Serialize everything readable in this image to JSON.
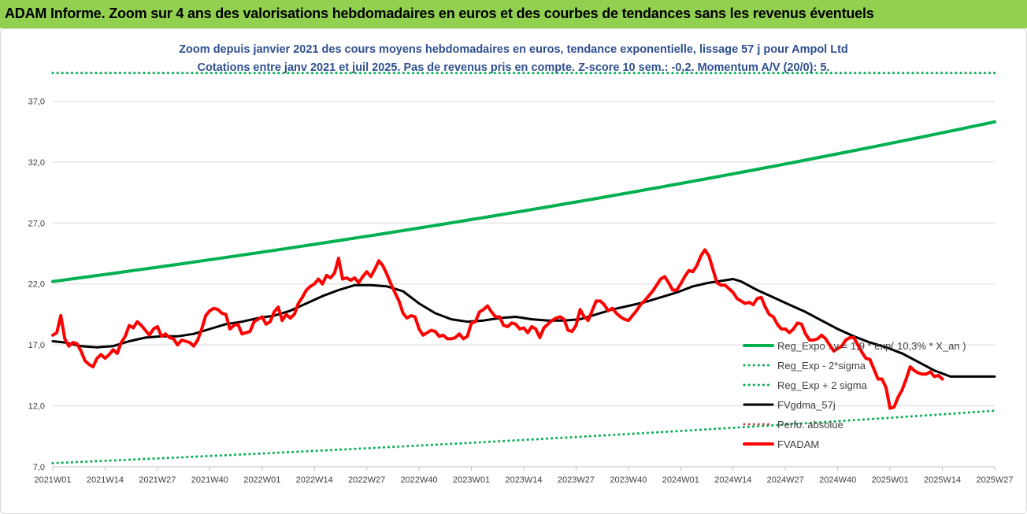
{
  "banner": {
    "text": "ADAM Informe. Zoom sur 4 ans des valorisations hebdomadaires en euros et des courbes de tendances sans les revenus éventuels"
  },
  "colors": {
    "banner_bg": "#92d050",
    "title": "#2f4f8f",
    "trend": "#00b050",
    "price": "#ff0000",
    "smooth": "#000000",
    "grid": "#d9d9d9"
  },
  "chart_data": {
    "type": "line",
    "title_lines": [
      "Zoom depuis janvier 2021 des cours moyens hebdomadaires en euros, tendance exponentielle, lissage 57 j pour Ampol Ltd",
      "Cotations entre janv 2021 et juil 2025. Pas de revenus pris en compte. Z-score 10 sem.: -0,2. Momentum A/V (20/0): 5."
    ],
    "ylim": [
      7,
      40
    ],
    "yticks": [
      7,
      12,
      17,
      22,
      27,
      32,
      37
    ],
    "ytick_labels": [
      "7,0",
      "12,0",
      "17,0",
      "22,0",
      "27,0",
      "32,0",
      "37,0"
    ],
    "x_tick_labels": [
      "2021W01",
      "2021W14",
      "2021W27",
      "2021W40",
      "2022W01",
      "2022W14",
      "2022W27",
      "2022W40",
      "2023W01",
      "2023W14",
      "2023W27",
      "2023W40",
      "2024W01",
      "2024W14",
      "2024W27",
      "2024W40",
      "2025W01",
      "2025W14",
      "2025W27"
    ],
    "x_tick_weeks": [
      0,
      13,
      26,
      39,
      52,
      65,
      78,
      91,
      104,
      117,
      130,
      143,
      156,
      169,
      182,
      195,
      208,
      221,
      234
    ],
    "grid": "horizontal",
    "legend_position": "right",
    "legend": [
      {
        "label": "Reg_Expo : y = 1,9 * exp( 10,3% *  X_an )",
        "style": "solid",
        "color": "#00b050",
        "width": 4
      },
      {
        "label": "Reg_Exp - 2*sigma",
        "style": "dotted",
        "color": "#00b050",
        "width": 3
      },
      {
        "label": "Reg_Exp + 2 sigma",
        "style": "dotted",
        "color": "#00b050",
        "width": 3
      },
      {
        "label": "FVgdma_57j",
        "style": "solid",
        "color": "#000000",
        "width": 3
      },
      {
        "label": "Perfo. absolue",
        "style": "dotted",
        "color": "#c0504d",
        "width": 3
      },
      {
        "label": "FVADAM",
        "style": "solid",
        "color": "#ff0000",
        "width": 4
      }
    ],
    "series": [
      {
        "name": "Reg_Expo : y = 1,9 * exp( 10,3% *  X_an )",
        "kind": "exp",
        "color": "#00b050",
        "values_at_weeks": {
          "0": 22.2,
          "234": 35.3
        }
      },
      {
        "name": "Reg_Exp - 2*sigma",
        "kind": "exp",
        "color": "#00b050",
        "values_at_weeks": {
          "0": 7.3,
          "234": 11.6
        }
      },
      {
        "name": "Reg_Exp + 2 sigma",
        "kind": "exp",
        "color": "#00b050",
        "values_at_weeks": {
          "0": 39.3,
          "234": 39.3
        }
      },
      {
        "name": "FVgdma_57j",
        "kind": "line",
        "color": "#000000",
        "points": [
          [
            0,
            17.3
          ],
          [
            3,
            17.2
          ],
          [
            7,
            16.9
          ],
          [
            11,
            16.8
          ],
          [
            15,
            16.9
          ],
          [
            19,
            17.3
          ],
          [
            23,
            17.6
          ],
          [
            27,
            17.7
          ],
          [
            31,
            17.7
          ],
          [
            35,
            17.9
          ],
          [
            39,
            18.3
          ],
          [
            43,
            18.7
          ],
          [
            47,
            18.9
          ],
          [
            51,
            19.2
          ],
          [
            55,
            19.4
          ],
          [
            59,
            19.8
          ],
          [
            63,
            20.4
          ],
          [
            67,
            21.0
          ],
          [
            71,
            21.5
          ],
          [
            75,
            21.9
          ],
          [
            79,
            21.9
          ],
          [
            83,
            21.8
          ],
          [
            87,
            21.4
          ],
          [
            91,
            20.4
          ],
          [
            95,
            19.6
          ],
          [
            99,
            19.1
          ],
          [
            103,
            18.9
          ],
          [
            107,
            19.0
          ],
          [
            111,
            19.2
          ],
          [
            115,
            19.3
          ],
          [
            119,
            19.1
          ],
          [
            123,
            19.0
          ],
          [
            127,
            19.0
          ],
          [
            131,
            19.1
          ],
          [
            135,
            19.5
          ],
          [
            139,
            19.9
          ],
          [
            143,
            20.2
          ],
          [
            147,
            20.5
          ],
          [
            151,
            20.9
          ],
          [
            155,
            21.3
          ],
          [
            159,
            21.8
          ],
          [
            163,
            22.1
          ],
          [
            167,
            22.3
          ],
          [
            169,
            22.4
          ],
          [
            171,
            22.2
          ],
          [
            175,
            21.5
          ],
          [
            179,
            20.9
          ],
          [
            183,
            20.3
          ],
          [
            187,
            19.7
          ],
          [
            191,
            19.0
          ],
          [
            195,
            18.3
          ],
          [
            199,
            17.7
          ],
          [
            203,
            17.2
          ],
          [
            207,
            16.8
          ],
          [
            211,
            16.3
          ],
          [
            215,
            15.6
          ],
          [
            219,
            14.9
          ],
          [
            223,
            14.4
          ],
          [
            227,
            14.4
          ],
          [
            231,
            14.4
          ],
          [
            234,
            14.4
          ]
        ]
      },
      {
        "name": "FVADAM",
        "kind": "line",
        "color": "#ff0000",
        "points": [
          [
            0,
            17.8
          ],
          [
            1,
            18.0
          ],
          [
            2,
            19.4
          ],
          [
            3,
            17.5
          ],
          [
            4,
            16.9
          ],
          [
            5,
            17.2
          ],
          [
            6,
            17.1
          ],
          [
            7,
            16.5
          ],
          [
            8,
            15.7
          ],
          [
            9,
            15.4
          ],
          [
            10,
            15.2
          ],
          [
            11,
            15.9
          ],
          [
            12,
            16.2
          ],
          [
            13,
            15.9
          ],
          [
            14,
            16.2
          ],
          [
            15,
            16.6
          ],
          [
            16,
            16.3
          ],
          [
            17,
            17.2
          ],
          [
            18,
            17.7
          ],
          [
            19,
            18.6
          ],
          [
            20,
            18.4
          ],
          [
            21,
            18.9
          ],
          [
            22,
            18.6
          ],
          [
            23,
            18.2
          ],
          [
            24,
            17.8
          ],
          [
            25,
            18.3
          ],
          [
            26,
            18.5
          ],
          [
            27,
            17.7
          ],
          [
            28,
            17.9
          ],
          [
            29,
            17.6
          ],
          [
            30,
            17.5
          ],
          [
            31,
            17.0
          ],
          [
            32,
            17.4
          ],
          [
            33,
            17.3
          ],
          [
            34,
            17.2
          ],
          [
            35,
            16.9
          ],
          [
            36,
            17.4
          ],
          [
            37,
            18.3
          ],
          [
            38,
            19.4
          ],
          [
            39,
            19.8
          ],
          [
            40,
            20.0
          ],
          [
            41,
            19.9
          ],
          [
            42,
            19.6
          ],
          [
            43,
            19.5
          ],
          [
            44,
            18.3
          ],
          [
            45,
            18.6
          ],
          [
            46,
            18.7
          ],
          [
            47,
            17.9
          ],
          [
            48,
            18.0
          ],
          [
            49,
            18.1
          ],
          [
            50,
            18.9
          ],
          [
            51,
            19.1
          ],
          [
            52,
            19.3
          ],
          [
            53,
            18.7
          ],
          [
            54,
            18.9
          ],
          [
            55,
            19.7
          ],
          [
            56,
            20.1
          ],
          [
            57,
            19.0
          ],
          [
            58,
            19.5
          ],
          [
            59,
            19.2
          ],
          [
            60,
            19.5
          ],
          [
            61,
            20.4
          ],
          [
            62,
            20.9
          ],
          [
            63,
            21.5
          ],
          [
            64,
            21.8
          ],
          [
            65,
            22.0
          ],
          [
            66,
            22.4
          ],
          [
            67,
            22.0
          ],
          [
            68,
            22.7
          ],
          [
            69,
            22.5
          ],
          [
            70,
            22.9
          ],
          [
            71,
            24.1
          ],
          [
            72,
            22.4
          ],
          [
            73,
            22.5
          ],
          [
            74,
            22.3
          ],
          [
            75,
            22.5
          ],
          [
            76,
            22.1
          ],
          [
            77,
            22.6
          ],
          [
            78,
            23.0
          ],
          [
            79,
            22.6
          ],
          [
            80,
            23.2
          ],
          [
            81,
            23.9
          ],
          [
            82,
            23.5
          ],
          [
            83,
            22.8
          ],
          [
            84,
            22.0
          ],
          [
            85,
            21.3
          ],
          [
            86,
            20.6
          ],
          [
            87,
            19.6
          ],
          [
            88,
            19.2
          ],
          [
            89,
            19.4
          ],
          [
            90,
            19.3
          ],
          [
            91,
            18.3
          ],
          [
            92,
            17.8
          ],
          [
            93,
            18.0
          ],
          [
            94,
            18.2
          ],
          [
            95,
            18.1
          ],
          [
            96,
            17.7
          ],
          [
            97,
            17.8
          ],
          [
            98,
            17.5
          ],
          [
            99,
            17.5
          ],
          [
            100,
            17.6
          ],
          [
            101,
            17.9
          ],
          [
            102,
            17.5
          ],
          [
            103,
            17.7
          ],
          [
            104,
            18.8
          ],
          [
            105,
            18.9
          ],
          [
            106,
            19.7
          ],
          [
            107,
            19.9
          ],
          [
            108,
            20.2
          ],
          [
            109,
            19.7
          ],
          [
            110,
            19.3
          ],
          [
            111,
            19.3
          ],
          [
            112,
            18.6
          ],
          [
            113,
            18.5
          ],
          [
            114,
            18.8
          ],
          [
            115,
            18.7
          ],
          [
            116,
            18.3
          ],
          [
            117,
            18.4
          ],
          [
            118,
            18.0
          ],
          [
            119,
            18.5
          ],
          [
            120,
            18.3
          ],
          [
            121,
            17.6
          ],
          [
            122,
            18.4
          ],
          [
            123,
            18.7
          ],
          [
            124,
            19.0
          ],
          [
            125,
            19.2
          ],
          [
            126,
            19.3
          ],
          [
            127,
            19.1
          ],
          [
            128,
            18.2
          ],
          [
            129,
            18.1
          ],
          [
            130,
            18.6
          ],
          [
            131,
            19.9
          ],
          [
            132,
            19.3
          ],
          [
            133,
            19.0
          ],
          [
            134,
            19.8
          ],
          [
            135,
            20.6
          ],
          [
            136,
            20.6
          ],
          [
            137,
            20.3
          ],
          [
            138,
            19.8
          ],
          [
            139,
            20.0
          ],
          [
            140,
            19.6
          ],
          [
            141,
            19.3
          ],
          [
            142,
            19.1
          ],
          [
            143,
            19.0
          ],
          [
            144,
            19.4
          ],
          [
            145,
            19.8
          ],
          [
            146,
            20.3
          ],
          [
            147,
            20.6
          ],
          [
            148,
            21.0
          ],
          [
            149,
            21.4
          ],
          [
            150,
            21.9
          ],
          [
            151,
            22.4
          ],
          [
            152,
            22.6
          ],
          [
            153,
            22.1
          ],
          [
            154,
            21.5
          ],
          [
            155,
            21.5
          ],
          [
            156,
            22.0
          ],
          [
            157,
            22.6
          ],
          [
            158,
            23.1
          ],
          [
            159,
            23.0
          ],
          [
            160,
            23.5
          ],
          [
            161,
            24.3
          ],
          [
            162,
            24.8
          ],
          [
            163,
            24.3
          ],
          [
            164,
            23.2
          ],
          [
            165,
            22.1
          ],
          [
            166,
            21.9
          ],
          [
            167,
            21.9
          ],
          [
            168,
            21.6
          ],
          [
            169,
            21.3
          ],
          [
            170,
            20.8
          ],
          [
            171,
            20.6
          ],
          [
            172,
            20.4
          ],
          [
            173,
            20.5
          ],
          [
            174,
            20.3
          ],
          [
            175,
            20.8
          ],
          [
            176,
            20.9
          ],
          [
            177,
            20.1
          ],
          [
            178,
            19.5
          ],
          [
            179,
            19.3
          ],
          [
            180,
            18.7
          ],
          [
            181,
            18.3
          ],
          [
            182,
            18.3
          ],
          [
            183,
            18.0
          ],
          [
            184,
            18.3
          ],
          [
            185,
            18.8
          ],
          [
            186,
            18.7
          ],
          [
            187,
            17.9
          ],
          [
            188,
            17.4
          ],
          [
            189,
            17.4
          ],
          [
            190,
            17.5
          ],
          [
            191,
            17.8
          ],
          [
            192,
            17.5
          ],
          [
            193,
            17.0
          ],
          [
            194,
            16.5
          ],
          [
            195,
            16.7
          ],
          [
            196,
            16.9
          ],
          [
            197,
            17.4
          ],
          [
            198,
            17.6
          ],
          [
            199,
            17.6
          ],
          [
            200,
            17.0
          ],
          [
            201,
            16.4
          ],
          [
            202,
            15.9
          ],
          [
            203,
            15.8
          ],
          [
            204,
            15.0
          ],
          [
            205,
            14.2
          ],
          [
            206,
            14.2
          ],
          [
            207,
            13.5
          ],
          [
            208,
            11.8
          ],
          [
            209,
            11.9
          ],
          [
            210,
            12.7
          ],
          [
            211,
            13.3
          ],
          [
            212,
            14.2
          ],
          [
            213,
            15.2
          ],
          [
            214,
            14.9
          ],
          [
            215,
            14.7
          ],
          [
            216,
            14.6
          ],
          [
            217,
            14.6
          ],
          [
            218,
            14.8
          ],
          [
            219,
            14.4
          ],
          [
            220,
            14.5
          ],
          [
            221,
            14.2
          ]
        ]
      }
    ]
  }
}
